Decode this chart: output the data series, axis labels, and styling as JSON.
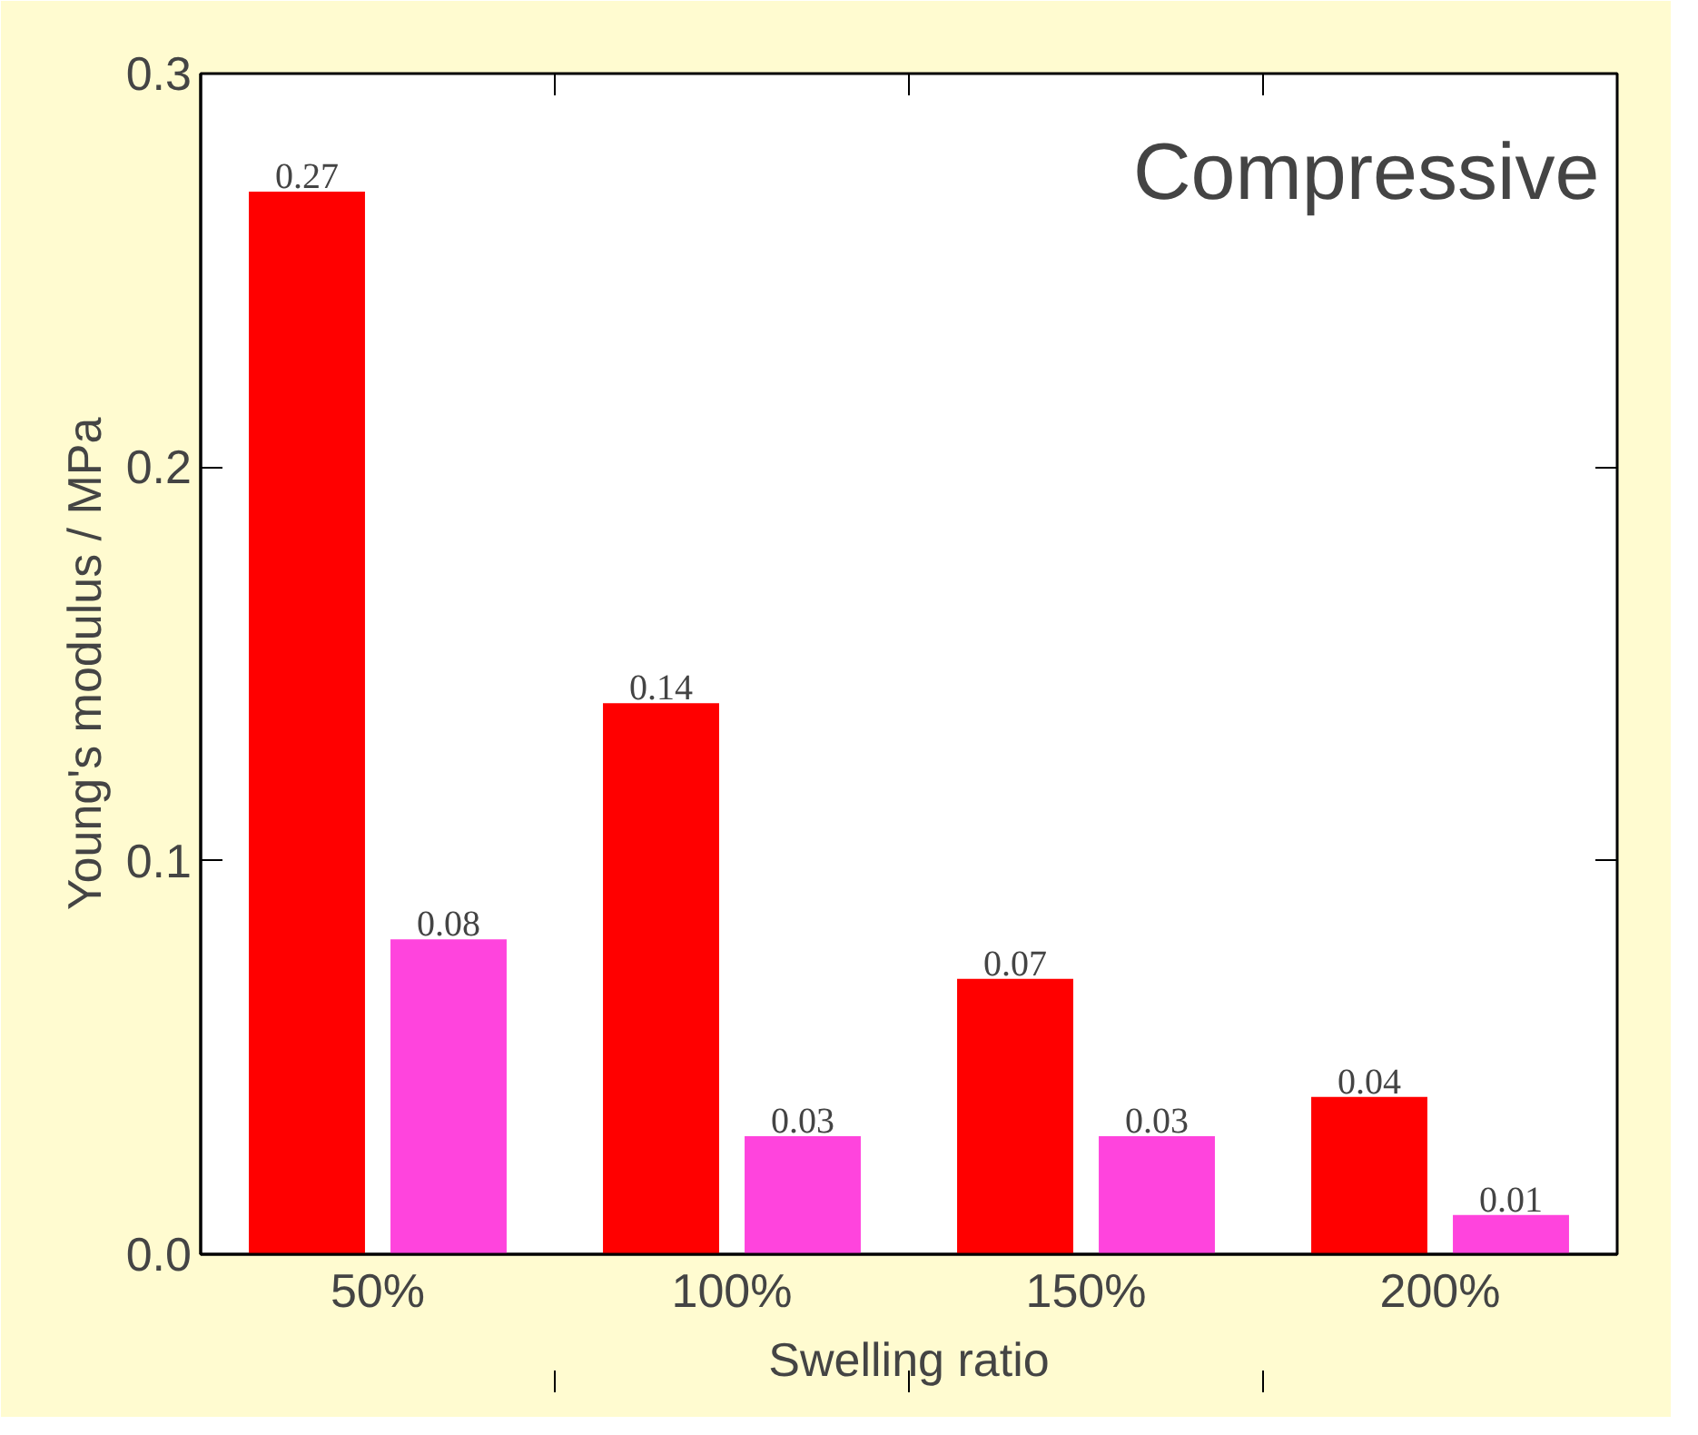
{
  "chart_data": {
    "type": "bar",
    "xlabel": "Swelling ratio",
    "ylabel": "Young's modulus / MPa",
    "categories": [
      "50%",
      "100%",
      "150%",
      "200%"
    ],
    "series": [
      {
        "color": "#ff0000",
        "values": [
          0.27,
          0.14,
          0.07,
          0.04
        ]
      },
      {
        "color": "#ff44dd",
        "values": [
          0.08,
          0.03,
          0.03,
          0.01
        ]
      }
    ],
    "ylim": [
      0,
      0.3
    ],
    "yticks": [
      {
        "value": 0,
        "label": "0.0"
      },
      {
        "value": 0.1,
        "label": "0.1"
      },
      {
        "value": 0.2,
        "label": "0.2"
      },
      {
        "value": 0.3,
        "label": "0.3"
      }
    ],
    "data_labels": true,
    "grid": false,
    "annotations": [
      "Compressive"
    ]
  }
}
